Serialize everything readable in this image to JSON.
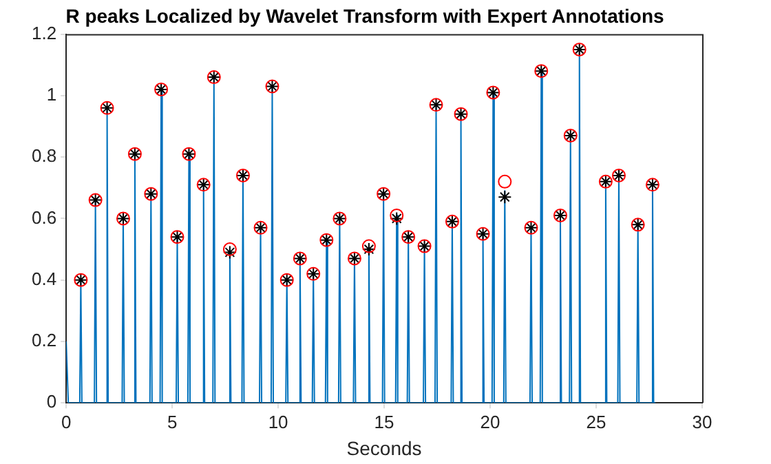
{
  "chart_data": {
    "type": "line",
    "title": "R peaks Localized by Wavelet Transform with Expert Annotations",
    "xlabel": "Seconds",
    "xlim": [
      0,
      30
    ],
    "xticks": [
      0,
      5,
      10,
      15,
      20,
      25,
      30
    ],
    "ylim": [
      0,
      1.2
    ],
    "yticks": [
      0,
      0.2,
      0.4,
      0.6,
      0.8,
      1,
      1.2
    ],
    "grid": false,
    "legend": false,
    "x": [
      0.69,
      1.38,
      1.93,
      2.69,
      3.24,
      4.0,
      4.48,
      5.24,
      5.79,
      6.48,
      6.97,
      7.72,
      8.34,
      9.17,
      9.72,
      10.41,
      11.03,
      11.66,
      12.28,
      12.9,
      13.6,
      14.28,
      14.97,
      15.59,
      16.14,
      16.9,
      17.45,
      18.21,
      18.62,
      19.66,
      20.14,
      20.69,
      21.93,
      22.41,
      23.31,
      23.79,
      24.21,
      25.45,
      26.07,
      26.97,
      27.66
    ],
    "series": [
      {
        "color": "#0072bd",
        "marker": "none",
        "x": [
          0,
          0.1,
          0.64,
          0.69,
          0.74,
          1.33,
          1.38,
          1.43,
          1.88,
          1.93,
          1.98,
          2.64,
          2.69,
          2.74,
          3.19,
          3.24,
          3.29,
          3.95,
          4.0,
          4.05,
          4.43,
          4.48,
          4.53,
          5.19,
          5.24,
          5.29,
          5.74,
          5.79,
          5.84,
          6.43,
          6.48,
          6.53,
          6.92,
          6.97,
          7.02,
          7.67,
          7.72,
          7.77,
          8.29,
          8.34,
          8.39,
          9.12,
          9.17,
          9.22,
          9.67,
          9.72,
          9.77,
          10.36,
          10.41,
          10.46,
          10.98,
          11.03,
          11.08,
          11.61,
          11.66,
          11.71,
          12.23,
          12.28,
          12.33,
          12.85,
          12.9,
          12.95,
          13.55,
          13.6,
          13.65,
          14.23,
          14.28,
          14.33,
          14.92,
          14.97,
          15.02,
          15.54,
          15.59,
          15.64,
          16.09,
          16.14,
          16.19,
          16.85,
          16.9,
          16.95,
          17.4,
          17.45,
          17.5,
          18.16,
          18.21,
          18.26,
          18.57,
          18.62,
          18.67,
          19.61,
          19.66,
          19.71,
          20.09,
          20.14,
          20.19,
          20.64,
          20.69,
          20.74,
          21.88,
          21.93,
          21.98,
          22.36,
          22.41,
          22.46,
          23.26,
          23.31,
          23.36,
          23.74,
          23.79,
          23.84,
          24.16,
          24.21,
          24.26,
          25.4,
          25.45,
          25.5,
          26.02,
          26.07,
          26.12,
          26.92,
          26.97,
          27.02,
          27.61,
          27.66,
          27.71,
          27.8
        ],
        "values": [
          0.2,
          0,
          0,
          0.4,
          0,
          0,
          0.66,
          0,
          0,
          0.96,
          0,
          0,
          0.6,
          0,
          0,
          0.81,
          0,
          0,
          0.68,
          0,
          0,
          1.02,
          0,
          0,
          0.54,
          0,
          0,
          0.81,
          0,
          0,
          0.71,
          0,
          0,
          1.06,
          0,
          0,
          0.5,
          0,
          0,
          0.74,
          0,
          0,
          0.57,
          0,
          0,
          1.03,
          0,
          0,
          0.4,
          0,
          0,
          0.47,
          0,
          0,
          0.42,
          0,
          0,
          0.53,
          0,
          0,
          0.6,
          0,
          0,
          0.47,
          0,
          0,
          0.51,
          0,
          0,
          0.68,
          0,
          0,
          0.61,
          0,
          0,
          0.54,
          0,
          0,
          0.51,
          0,
          0,
          0.97,
          0,
          0,
          0.59,
          0,
          0,
          0.94,
          0,
          0,
          0.55,
          0,
          0,
          1.01,
          0,
          0,
          0.69,
          0,
          0,
          0.57,
          0,
          0,
          1.08,
          0,
          0,
          0.61,
          0,
          0,
          0.87,
          0,
          0,
          1.15,
          0,
          0,
          0.72,
          0,
          0,
          0.74,
          0,
          0,
          0.58,
          0,
          0,
          0.71,
          0,
          0
        ]
      },
      {
        "type": "scatter",
        "color": "#ff0000",
        "marker": "circle",
        "values": [
          0.4,
          0.66,
          0.96,
          0.6,
          0.81,
          0.68,
          1.02,
          0.54,
          0.81,
          0.71,
          1.06,
          0.5,
          0.74,
          0.57,
          1.03,
          0.4,
          0.47,
          0.42,
          0.53,
          0.6,
          0.47,
          0.51,
          0.68,
          0.61,
          0.54,
          0.51,
          0.97,
          0.59,
          0.94,
          0.55,
          1.01,
          0.72,
          0.57,
          1.08,
          0.61,
          0.87,
          1.15,
          0.72,
          0.74,
          0.58,
          0.71
        ]
      },
      {
        "type": "scatter",
        "color": "#000000",
        "marker": "cross",
        "values": [
          0.4,
          0.66,
          0.96,
          0.6,
          0.81,
          0.68,
          1.02,
          0.54,
          0.81,
          0.71,
          1.06,
          0.49,
          0.74,
          0.57,
          1.03,
          0.4,
          0.47,
          0.42,
          0.53,
          0.6,
          0.47,
          0.5,
          0.68,
          0.6,
          0.54,
          0.51,
          0.97,
          0.59,
          0.94,
          0.55,
          1.01,
          0.67,
          0.57,
          1.08,
          0.61,
          0.87,
          1.15,
          0.72,
          0.74,
          0.58,
          0.71
        ]
      }
    ]
  }
}
